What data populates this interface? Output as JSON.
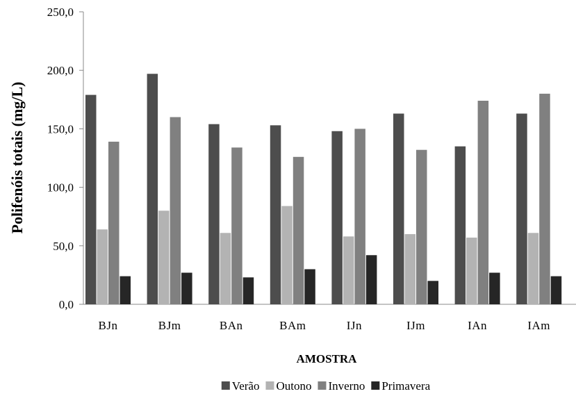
{
  "chart_data": {
    "type": "bar",
    "title": "",
    "xlabel": "AMOSTRA",
    "ylabel": "Polifenóis totais (mg/L)",
    "ylim": [
      0,
      250
    ],
    "yticks": [
      "0,0",
      "50,0",
      "100,0",
      "150,0",
      "200,0",
      "250,0"
    ],
    "ytick_values": [
      0,
      50,
      100,
      150,
      200,
      250
    ],
    "categories": [
      "BJn",
      "BJm",
      "BAn",
      "BAm",
      "IJn",
      "IJm",
      "IAn",
      "IAm"
    ],
    "series": [
      {
        "name": "Verão",
        "color": "#4d4d4d",
        "values": [
          179,
          197,
          154,
          153,
          148,
          163,
          135,
          163
        ]
      },
      {
        "name": "Outono",
        "color": "#b3b3b3",
        "values": [
          64,
          80,
          61,
          84,
          58,
          60,
          57,
          61
        ]
      },
      {
        "name": "Inverno",
        "color": "#808080",
        "values": [
          139,
          160,
          134,
          126,
          150,
          132,
          174,
          180
        ]
      },
      {
        "name": "Primavera",
        "color": "#262626",
        "values": [
          24,
          27,
          23,
          30,
          42,
          20,
          27,
          24
        ]
      }
    ],
    "grid": false,
    "legend_position": "bottom"
  }
}
